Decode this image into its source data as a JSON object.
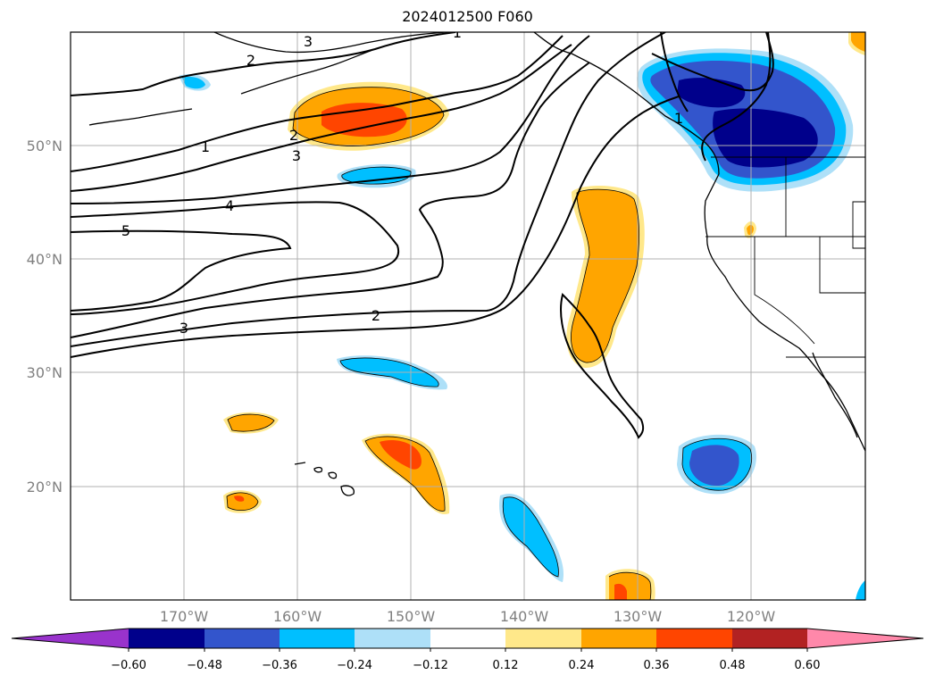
{
  "title": "2024012500 F060",
  "lat_labels": [
    "50°N",
    "40°N",
    "30°N",
    "20°N"
  ],
  "lon_labels": [
    "170°W",
    "160°W",
    "150°W",
    "140°W",
    "130°W",
    "120°W"
  ],
  "colorbar": {
    "labels": [
      "−0.60",
      "−0.48",
      "−0.36",
      "−0.24",
      "−0.12",
      "0.12",
      "0.24",
      "0.36",
      "0.48",
      "0.60"
    ],
    "colors": [
      "#9933cc",
      "#00008b",
      "#3355cc",
      "#00bfff",
      "#aee0f8",
      "#ffffff",
      "#ffe88a",
      "#ffa500",
      "#ff4500",
      "#b22222",
      "#ff88aa"
    ]
  },
  "contour_labels": [
    "1",
    "2",
    "3",
    "4",
    "5",
    "3",
    "2",
    "1",
    "2",
    "3",
    "1"
  ],
  "legend_colors": {
    "deep_blue": "#00008b",
    "mid_blue": "#3355cc",
    "cyan": "#00bfff",
    "pale_blue": "#aee0f8",
    "pale_yellow": "#ffe88a",
    "orange": "#ffa500",
    "red_orange": "#ff4500"
  }
}
